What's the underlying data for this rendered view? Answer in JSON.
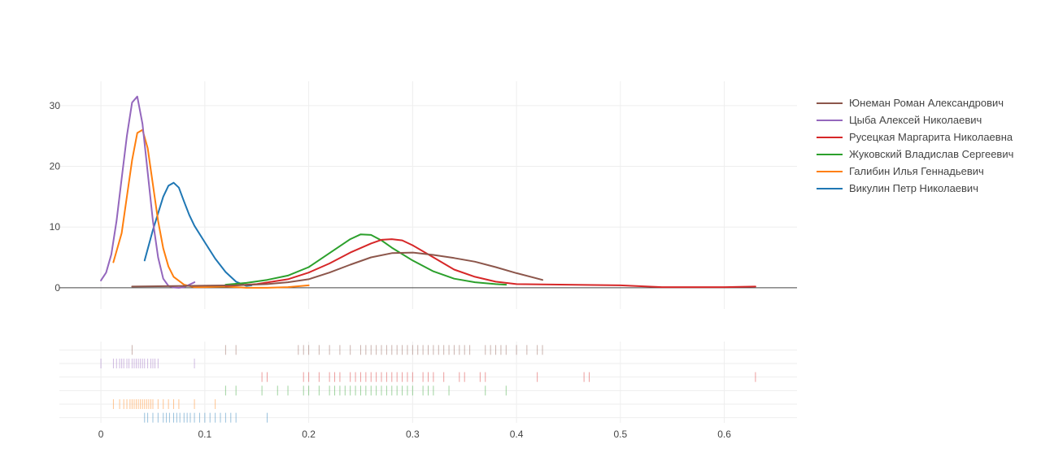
{
  "chart_data": {
    "type": "line",
    "title": "",
    "xlabel": "",
    "ylabel": "",
    "xlim": [
      -0.04,
      0.67
    ],
    "ylim": [
      -3.5,
      34
    ],
    "x_ticks": [
      0,
      0.1,
      0.2,
      0.3,
      0.4,
      0.5,
      0.6
    ],
    "x_tick_labels": [
      "0",
      "0.1",
      "0.2",
      "0.3",
      "0.4",
      "0.5",
      "0.6"
    ],
    "y_ticks": [
      0,
      10,
      20,
      30
    ],
    "y_tick_labels": [
      "0",
      "10",
      "20",
      "30"
    ],
    "grid": true,
    "legend": "right",
    "series": [
      {
        "name": "Юнеман Роман Александрович",
        "color": "#8c564b",
        "x": [
          0.03,
          0.08,
          0.13,
          0.16,
          0.18,
          0.2,
          0.22,
          0.24,
          0.26,
          0.28,
          0.3,
          0.32,
          0.34,
          0.36,
          0.38,
          0.4,
          0.425
        ],
        "y": [
          0.2,
          0.3,
          0.4,
          0.6,
          0.9,
          1.4,
          2.5,
          3.8,
          5.0,
          5.7,
          5.8,
          5.4,
          4.9,
          4.3,
          3.4,
          2.4,
          1.3
        ],
        "rug": [
          0.03,
          0.12,
          0.13,
          0.19,
          0.195,
          0.2,
          0.21,
          0.22,
          0.23,
          0.24,
          0.25,
          0.255,
          0.26,
          0.265,
          0.27,
          0.275,
          0.28,
          0.285,
          0.29,
          0.295,
          0.3,
          0.305,
          0.31,
          0.315,
          0.32,
          0.325,
          0.33,
          0.335,
          0.34,
          0.345,
          0.35,
          0.355,
          0.37,
          0.375,
          0.38,
          0.385,
          0.39,
          0.4,
          0.41,
          0.42,
          0.425
        ]
      },
      {
        "name": "Цыба Алексей Николаевич",
        "color": "#9467bd",
        "x": [
          0.0,
          0.005,
          0.01,
          0.015,
          0.02,
          0.025,
          0.03,
          0.035,
          0.04,
          0.045,
          0.05,
          0.055,
          0.06,
          0.065,
          0.07,
          0.075,
          0.08,
          0.085,
          0.09
        ],
        "y": [
          1.2,
          2.5,
          5.5,
          11.0,
          18.0,
          25.0,
          30.5,
          31.5,
          27.0,
          19.0,
          11.0,
          5.0,
          1.5,
          0.3,
          0.05,
          0.0,
          0.1,
          0.5,
          0.9
        ],
        "rug": [
          0.0,
          0.012,
          0.015,
          0.018,
          0.02,
          0.022,
          0.025,
          0.027,
          0.03,
          0.032,
          0.034,
          0.036,
          0.038,
          0.04,
          0.042,
          0.045,
          0.048,
          0.05,
          0.052,
          0.055,
          0.09
        ]
      },
      {
        "name": "Русецкая Маргарита Николаевна",
        "color": "#d62728",
        "x": [
          0.12,
          0.15,
          0.18,
          0.2,
          0.22,
          0.24,
          0.26,
          0.27,
          0.28,
          0.29,
          0.3,
          0.32,
          0.34,
          0.36,
          0.38,
          0.4,
          0.45,
          0.5,
          0.54,
          0.6,
          0.63
        ],
        "y": [
          0.3,
          0.6,
          1.4,
          2.5,
          4.0,
          5.8,
          7.3,
          7.9,
          8.0,
          7.8,
          7.0,
          5.0,
          3.0,
          1.8,
          1.0,
          0.6,
          0.5,
          0.4,
          0.1,
          0.1,
          0.2
        ],
        "rug": [
          0.155,
          0.16,
          0.195,
          0.2,
          0.21,
          0.22,
          0.225,
          0.23,
          0.24,
          0.245,
          0.25,
          0.255,
          0.26,
          0.265,
          0.27,
          0.275,
          0.28,
          0.285,
          0.29,
          0.295,
          0.3,
          0.31,
          0.315,
          0.32,
          0.33,
          0.345,
          0.35,
          0.365,
          0.37,
          0.42,
          0.465,
          0.47,
          0.63
        ]
      },
      {
        "name": "Жуковский Владислав Сергеевич",
        "color": "#2ca02c",
        "x": [
          0.12,
          0.14,
          0.16,
          0.18,
          0.2,
          0.22,
          0.24,
          0.25,
          0.26,
          0.27,
          0.28,
          0.3,
          0.32,
          0.34,
          0.36,
          0.38,
          0.39
        ],
        "y": [
          0.5,
          0.8,
          1.3,
          2.0,
          3.4,
          5.7,
          8.0,
          8.8,
          8.7,
          7.8,
          6.6,
          4.5,
          2.7,
          1.5,
          0.9,
          0.6,
          0.5
        ],
        "rug": [
          0.12,
          0.13,
          0.155,
          0.17,
          0.18,
          0.195,
          0.2,
          0.21,
          0.22,
          0.225,
          0.23,
          0.235,
          0.24,
          0.245,
          0.25,
          0.255,
          0.26,
          0.265,
          0.27,
          0.275,
          0.28,
          0.285,
          0.29,
          0.295,
          0.3,
          0.31,
          0.315,
          0.32,
          0.335,
          0.37,
          0.39
        ]
      },
      {
        "name": "Галибин Илья Геннадьевич",
        "color": "#ff7f0e",
        "x": [
          0.012,
          0.02,
          0.025,
          0.03,
          0.035,
          0.04,
          0.045,
          0.05,
          0.055,
          0.06,
          0.065,
          0.07,
          0.08,
          0.09,
          0.1,
          0.12,
          0.14,
          0.16,
          0.18,
          0.2
        ],
        "y": [
          4.2,
          9.0,
          15.0,
          21.0,
          25.5,
          26.0,
          23.0,
          17.0,
          11.0,
          6.5,
          3.5,
          1.8,
          0.5,
          0.1,
          0.1,
          0.2,
          0.0,
          0.0,
          0.1,
          0.4
        ],
        "rug": [
          0.012,
          0.018,
          0.022,
          0.025,
          0.028,
          0.03,
          0.032,
          0.034,
          0.036,
          0.038,
          0.04,
          0.042,
          0.044,
          0.046,
          0.048,
          0.05,
          0.055,
          0.06,
          0.065,
          0.07,
          0.075,
          0.09,
          0.11
        ]
      },
      {
        "name": "Викулин Петр Николаевич",
        "color": "#1f77b4",
        "x": [
          0.042,
          0.05,
          0.06,
          0.065,
          0.07,
          0.075,
          0.08,
          0.085,
          0.09,
          0.1,
          0.11,
          0.12,
          0.13,
          0.14,
          0.145
        ],
        "y": [
          4.5,
          9.5,
          15.0,
          16.8,
          17.3,
          16.5,
          14.2,
          12.0,
          10.2,
          7.5,
          4.8,
          2.6,
          1.0,
          0.3,
          0.4
        ],
        "rug": [
          0.042,
          0.045,
          0.05,
          0.055,
          0.06,
          0.063,
          0.066,
          0.07,
          0.073,
          0.076,
          0.08,
          0.083,
          0.086,
          0.09,
          0.095,
          0.1,
          0.105,
          0.11,
          0.115,
          0.12,
          0.125,
          0.13,
          0.16
        ]
      }
    ]
  }
}
